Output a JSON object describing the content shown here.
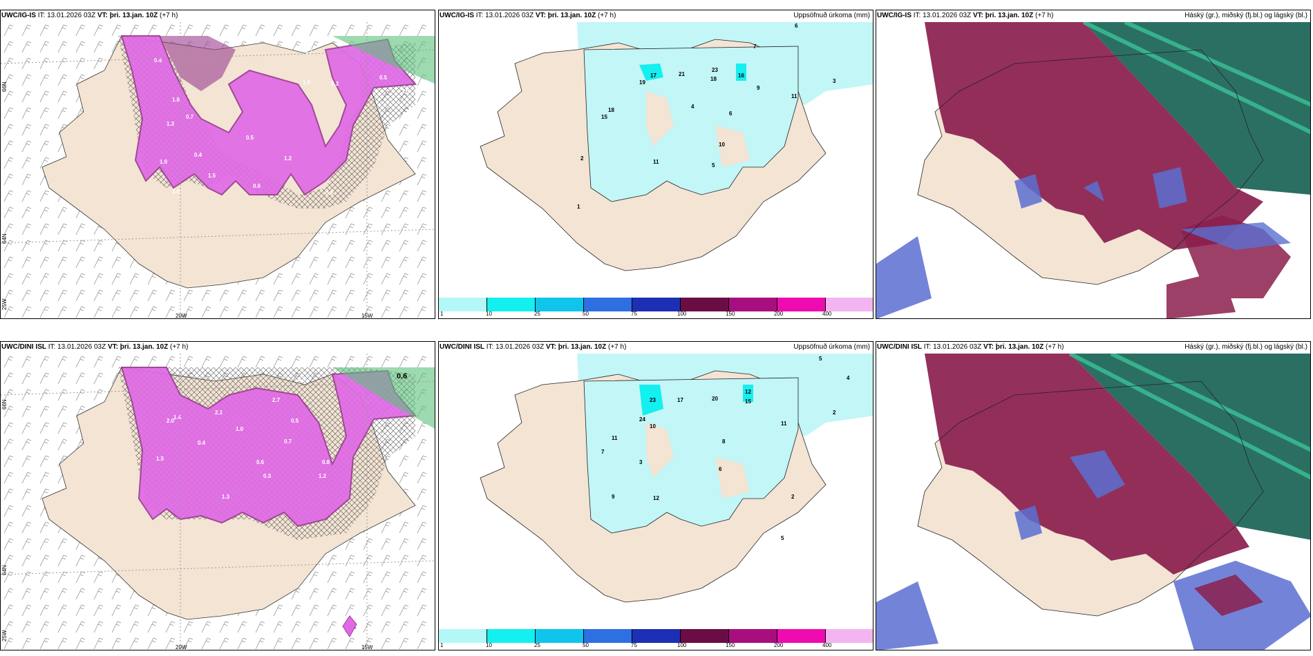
{
  "rows": [
    {
      "model": "UWC/IG-IS",
      "issue": "IT: 13.01.2026 03Z",
      "valid_label": "VT:",
      "valid": "þri. 13.jan. 10Z",
      "lead": "(+7 h)",
      "panels": {
        "snow": {
          "lat1": "66N",
          "lat2": "64N",
          "lon1": "25W",
          "lon2": "20W",
          "lon3": "15W",
          "values": [
            "0.4",
            "0.7",
            "1.6",
            "1.9",
            "0.5",
            "0.3",
            "1.6",
            "1.3",
            "0.5",
            "0.7",
            "2.0",
            "1.2",
            "0.6",
            "0.4",
            "1.5",
            "1.0",
            "0.8"
          ]
        },
        "precip": {
          "title": "Uppsöfnuð úrkoma (mm)",
          "values": [
            "6",
            "7",
            "3",
            "11",
            "9",
            "17",
            "21",
            "23",
            "16",
            "18",
            "19",
            "15",
            "18",
            "10",
            "11",
            "6",
            "4",
            "2",
            "1",
            "5"
          ]
        },
        "cloud": {
          "title": "Háský (gr.), miðský (fj.bl.) og lágský (bl.)"
        }
      }
    },
    {
      "model": "UWC/DINI ISL",
      "issue": "IT: 13.01.2026 03Z",
      "valid_label": "VT:",
      "valid": "þri. 13.jan. 10Z",
      "lead": "(+7 h)",
      "panels": {
        "snow": {
          "lat1": "66N",
          "lat2": "64N",
          "lon1": "25W",
          "lon2": "20W",
          "lon3": "15W",
          "values": [
            "0.6",
            "0.5",
            "2.7",
            "1.4",
            "2.1",
            "0.4",
            "0.5",
            "1.0",
            "0.8",
            "1.5",
            "0.7",
            "0.3",
            "2.0",
            "1.2",
            "0.6",
            "1.3",
            "1"
          ]
        },
        "precip": {
          "title": "Uppsöfnuð úrkoma (mm)",
          "values": [
            "5",
            "4",
            "2",
            "23",
            "17",
            "20",
            "12",
            "15",
            "24",
            "10",
            "11",
            "8",
            "7",
            "3",
            "12",
            "6",
            "9",
            "11",
            "5",
            "2"
          ]
        },
        "cloud": {
          "title": "Háský (gr.), miðský (fj.bl.) og lágský (bl.)"
        }
      }
    }
  ],
  "colorbar": {
    "ticks": [
      "1",
      "10",
      "25",
      "50",
      "75",
      "100",
      "150",
      "200",
      "400"
    ],
    "colors": [
      "#b3f8f7",
      "#14eff0",
      "#0fc5eb",
      "#2e6fe2",
      "#1d2fb4",
      "#6b0d45",
      "#a80e7e",
      "#ee0cb0",
      "#f3b5f0"
    ]
  },
  "colors": {
    "land": "#f3e4d4",
    "precip_light": "#c2f6f7",
    "snow": "#e06ae6",
    "snow_dark": "#9a3d8f",
    "cloud_high": "#2b6f63",
    "cloud_mid": "#8b1e4e",
    "cloud_low": "#5a6fd1"
  }
}
